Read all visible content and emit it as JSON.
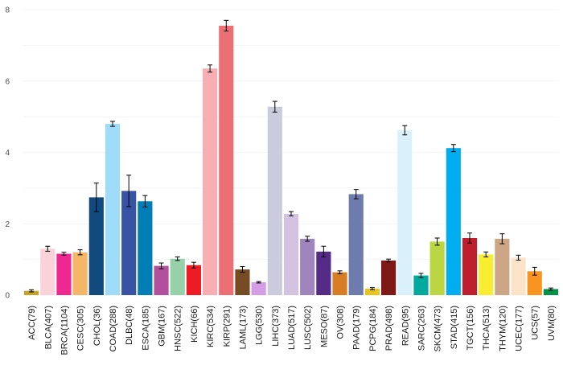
{
  "chart_data": {
    "type": "bar",
    "title": "",
    "xlabel": "",
    "ylabel": "",
    "ylim": [
      0,
      8
    ],
    "yticks": [
      "0",
      "2",
      "4",
      "6",
      "8"
    ],
    "grid": true,
    "categories": [
      "ACC(79)",
      "BLCA(407)",
      "BRCA(1104)",
      "CESC(305)",
      "CHOL(36)",
      "COAD(288)",
      "DLBC(48)",
      "ESCA(185)",
      "GBM(167)",
      "HNSC(522)",
      "KICH(66)",
      "KIRC(534)",
      "KIRP(291)",
      "LAML(173)",
      "LGG(530)",
      "LIHC(373)",
      "LUAD(517)",
      "LUSC(502)",
      "MESO(87)",
      "OV(308)",
      "PAAD(179)",
      "PCPG(184)",
      "PRAD(498)",
      "READ(95)",
      "SARC(263)",
      "SKCM(473)",
      "STAD(415)",
      "TGCT(156)",
      "THCA(513)",
      "THYM(120)",
      "UCEC(177)",
      "UCS(57)",
      "UVM(80)"
    ],
    "values": [
      0.12,
      1.3,
      1.16,
      1.2,
      2.74,
      4.8,
      2.92,
      2.63,
      0.82,
      1.02,
      0.84,
      6.35,
      7.55,
      0.72,
      0.36,
      5.28,
      2.28,
      1.58,
      1.22,
      0.64,
      2.83,
      0.18,
      0.97,
      4.62,
      0.55,
      1.5,
      4.12,
      1.6,
      1.14,
      1.58,
      1.05,
      0.67,
      0.17
    ],
    "errors": [
      0.03,
      0.07,
      0.04,
      0.07,
      0.4,
      0.07,
      0.44,
      0.16,
      0.08,
      0.05,
      0.08,
      0.1,
      0.15,
      0.08,
      0.02,
      0.15,
      0.06,
      0.07,
      0.15,
      0.04,
      0.13,
      0.03,
      0.04,
      0.13,
      0.06,
      0.1,
      0.1,
      0.14,
      0.07,
      0.14,
      0.07,
      0.11,
      0.03
    ],
    "colors": [
      "#c4a429",
      "#fad2d9",
      "#ed2891",
      "#f6b667",
      "#104a7f",
      "#9edcfa",
      "#3953a4",
      "#007eb5",
      "#b2509e",
      "#97d1a9",
      "#ed1c24",
      "#f8afb3",
      "#ea7075",
      "#754c24",
      "#d49de6",
      "#cacbdc",
      "#d3c3e0",
      "#a084bd",
      "#542c88",
      "#d97d25",
      "#6e7bad",
      "#e8c51d",
      "#7e1918",
      "#daf1fc",
      "#00a99d",
      "#bbd642",
      "#00aeef",
      "#be1e2d",
      "#f9ed32",
      "#cda785",
      "#fbe3c7",
      "#f89420",
      "#009245"
    ]
  }
}
